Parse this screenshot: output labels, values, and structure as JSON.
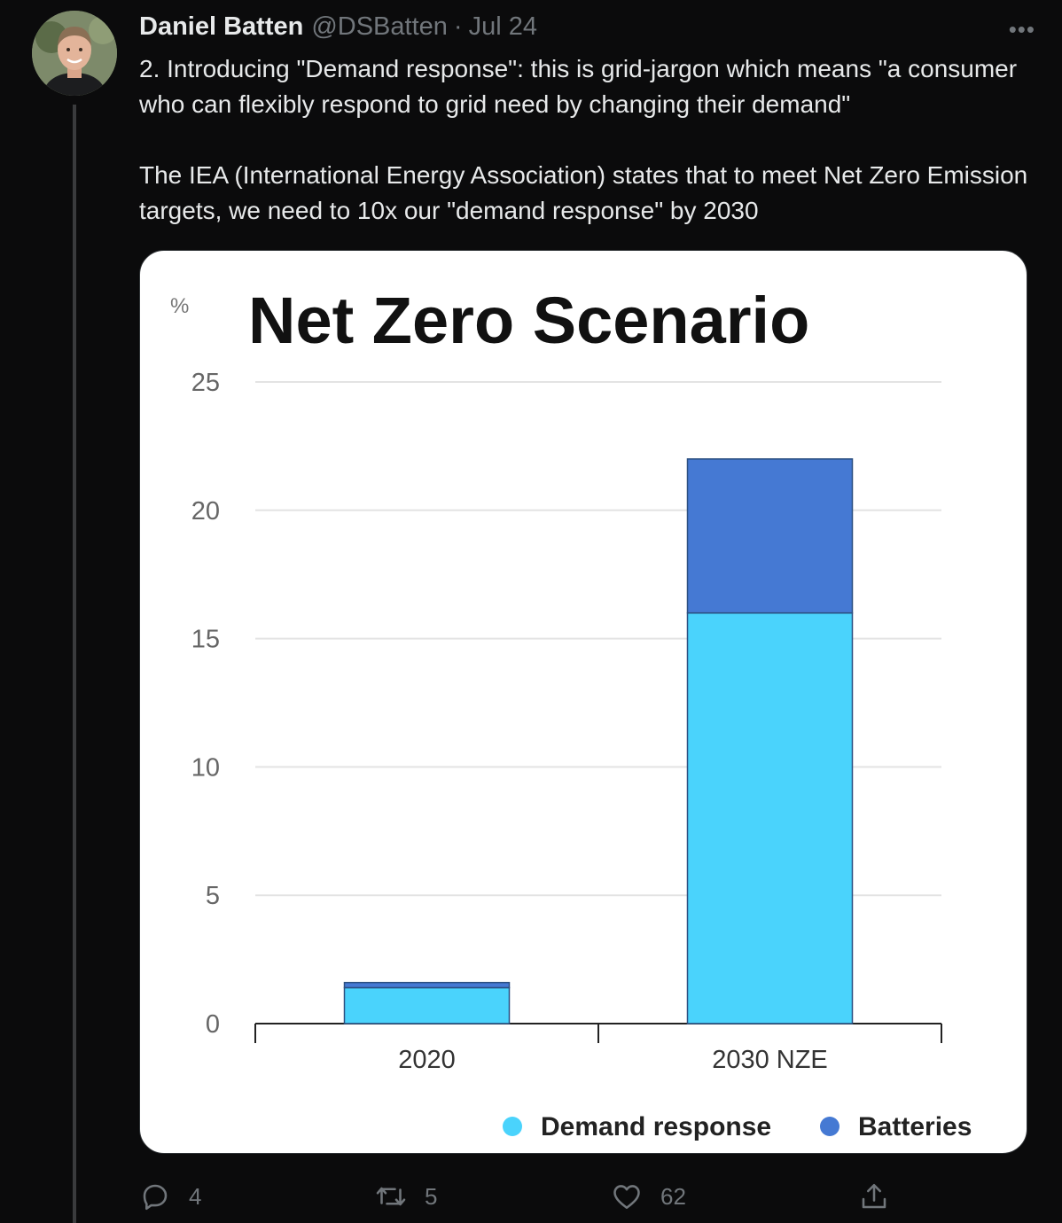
{
  "tweet": {
    "display_name": "Daniel Batten",
    "handle": "@DSBatten",
    "separator": "·",
    "date": "Jul 24",
    "more_label": "•••",
    "paragraphs": [
      "2. Introducing \"Demand response\": this is grid-jargon which means \"a consumer who can flexibly respond to grid need by changing their demand\"",
      "The IEA (International Energy Association) states that to meet Net Zero Emission targets, we need to 10x our \"demand response\" by 2030"
    ]
  },
  "actions": {
    "reply_count": "4",
    "retweet_count": "5",
    "like_count": "62"
  },
  "icons": [
    "reply-icon",
    "retweet-icon",
    "like-icon",
    "share-icon",
    "more-icon"
  ],
  "colors": {
    "demand_response": "#4ad3fc",
    "batteries": "#4579d3",
    "background": "#0b0b0c",
    "muted": "#71767b"
  },
  "chart_data": {
    "type": "bar",
    "stacked": true,
    "title": "Net Zero  Scenario",
    "ylabel": "%",
    "xlabel": "",
    "ylim": [
      0,
      25
    ],
    "yticks": [
      0,
      5,
      10,
      15,
      20,
      25
    ],
    "categories": [
      "2020",
      "2030 NZE"
    ],
    "series": [
      {
        "name": "Demand response",
        "values": [
          1.4,
          16
        ],
        "color": "#4ad3fc"
      },
      {
        "name": "Batteries",
        "values": [
          0.2,
          6
        ],
        "color": "#4579d3"
      }
    ],
    "legend_position": "bottom-right",
    "grid": true
  }
}
